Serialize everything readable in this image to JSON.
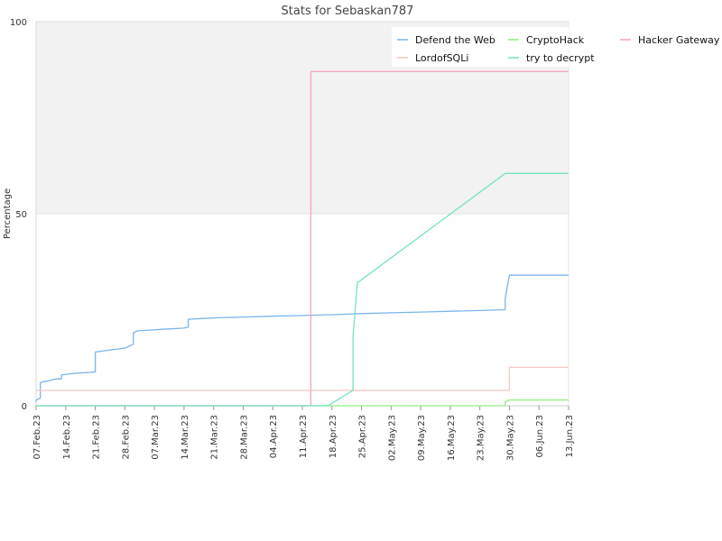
{
  "chart_data": {
    "type": "line",
    "title": "Stats for Sebaskan787",
    "ylabel": "Percentage",
    "xlabel": "",
    "ylim": [
      0,
      100
    ],
    "yticks": [
      0,
      50,
      100
    ],
    "xlim": [
      "2023-02-07",
      "2023-06-13"
    ],
    "xticks": [
      "2023-02-07",
      "2023-02-14",
      "2023-02-21",
      "2023-02-28",
      "2023-03-07",
      "2023-03-14",
      "2023-03-21",
      "2023-03-28",
      "2023-04-04",
      "2023-04-11",
      "2023-04-18",
      "2023-04-25",
      "2023-05-02",
      "2023-05-09",
      "2023-05-16",
      "2023-05-23",
      "2023-05-30",
      "2023-06-06",
      "2023-06-13"
    ],
    "xtick_labels": [
      "07.Feb.23",
      "14.Feb.23",
      "21.Feb.23",
      "28.Feb.23",
      "07.Mar.23",
      "14.Mar.23",
      "21.Mar.23",
      "28.Mar.23",
      "04.Apr.23",
      "11.Apr.23",
      "18.Apr.23",
      "25.Apr.23",
      "02.May.23",
      "09.May.23",
      "16.May.23",
      "23.May.23",
      "30.May.23",
      "06.Jun.23",
      "13.Jun.23"
    ],
    "grid": true,
    "legend_position": "top-right",
    "series": [
      {
        "name": "Defend the Web",
        "color": "#7cb5ec",
        "points": [
          [
            "2023-02-07",
            1
          ],
          [
            "2023-02-07",
            1.5
          ],
          [
            "2023-02-08",
            2
          ],
          [
            "2023-02-08",
            2.5
          ],
          [
            "2023-02-08",
            6
          ],
          [
            "2023-02-09",
            6.3
          ],
          [
            "2023-02-10",
            6.5
          ],
          [
            "2023-02-11",
            6.8
          ],
          [
            "2023-02-12",
            7
          ],
          [
            "2023-02-13",
            7
          ],
          [
            "2023-02-13",
            8
          ],
          [
            "2023-02-15",
            8.3
          ],
          [
            "2023-02-17",
            8.5
          ],
          [
            "2023-02-21",
            8.8
          ],
          [
            "2023-02-21",
            14
          ],
          [
            "2023-02-23",
            14.3
          ],
          [
            "2023-02-25",
            14.6
          ],
          [
            "2023-02-28",
            15
          ],
          [
            "2023-03-01",
            15.5
          ],
          [
            "2023-03-02",
            16
          ],
          [
            "2023-03-02",
            19
          ],
          [
            "2023-03-03",
            19.5
          ],
          [
            "2023-03-06",
            19.7
          ],
          [
            "2023-03-09",
            19.9
          ],
          [
            "2023-03-14",
            20.2
          ],
          [
            "2023-03-15",
            20.5
          ],
          [
            "2023-03-15",
            22.5
          ],
          [
            "2023-03-18",
            22.7
          ],
          [
            "2023-03-22",
            22.9
          ],
          [
            "2023-03-28",
            23.1
          ],
          [
            "2023-04-04",
            23.3
          ],
          [
            "2023-04-11",
            23.5
          ],
          [
            "2023-04-18",
            23.7
          ],
          [
            "2023-04-25",
            24
          ],
          [
            "2023-05-02",
            24.2
          ],
          [
            "2023-05-09",
            24.4
          ],
          [
            "2023-05-16",
            24.6
          ],
          [
            "2023-05-23",
            24.8
          ],
          [
            "2023-05-29",
            25
          ],
          [
            "2023-05-29",
            28
          ],
          [
            "2023-05-30",
            34
          ],
          [
            "2023-06-13",
            34
          ]
        ]
      },
      {
        "name": "CryptoHack",
        "color": "#90ed7d",
        "points": [
          [
            "2023-02-07",
            0
          ],
          [
            "2023-05-29",
            0
          ],
          [
            "2023-05-29",
            1
          ],
          [
            "2023-05-30",
            1.5
          ],
          [
            "2023-06-13",
            1.5
          ]
        ]
      },
      {
        "name": "Hacker Gateway",
        "color": "#f7a1c4",
        "points": [
          [
            "2023-02-07",
            0
          ],
          [
            "2023-04-13",
            0
          ],
          [
            "2023-04-13",
            87
          ],
          [
            "2023-06-13",
            87
          ]
        ]
      },
      {
        "name": "LordofSQLi",
        "color": "#f4c7c3",
        "points": [
          [
            "2023-02-07",
            4
          ],
          [
            "2023-05-30",
            4
          ],
          [
            "2023-05-30",
            10
          ],
          [
            "2023-06-13",
            10
          ]
        ]
      },
      {
        "name": "try to decrypt",
        "color": "#76e2c4",
        "points": [
          [
            "2023-02-07",
            0
          ],
          [
            "2023-04-17",
            0
          ],
          [
            "2023-04-23",
            4
          ],
          [
            "2023-04-23",
            18
          ],
          [
            "2023-04-24",
            32
          ],
          [
            "2023-05-29",
            60.5
          ],
          [
            "2023-06-13",
            60.5
          ]
        ]
      }
    ]
  }
}
